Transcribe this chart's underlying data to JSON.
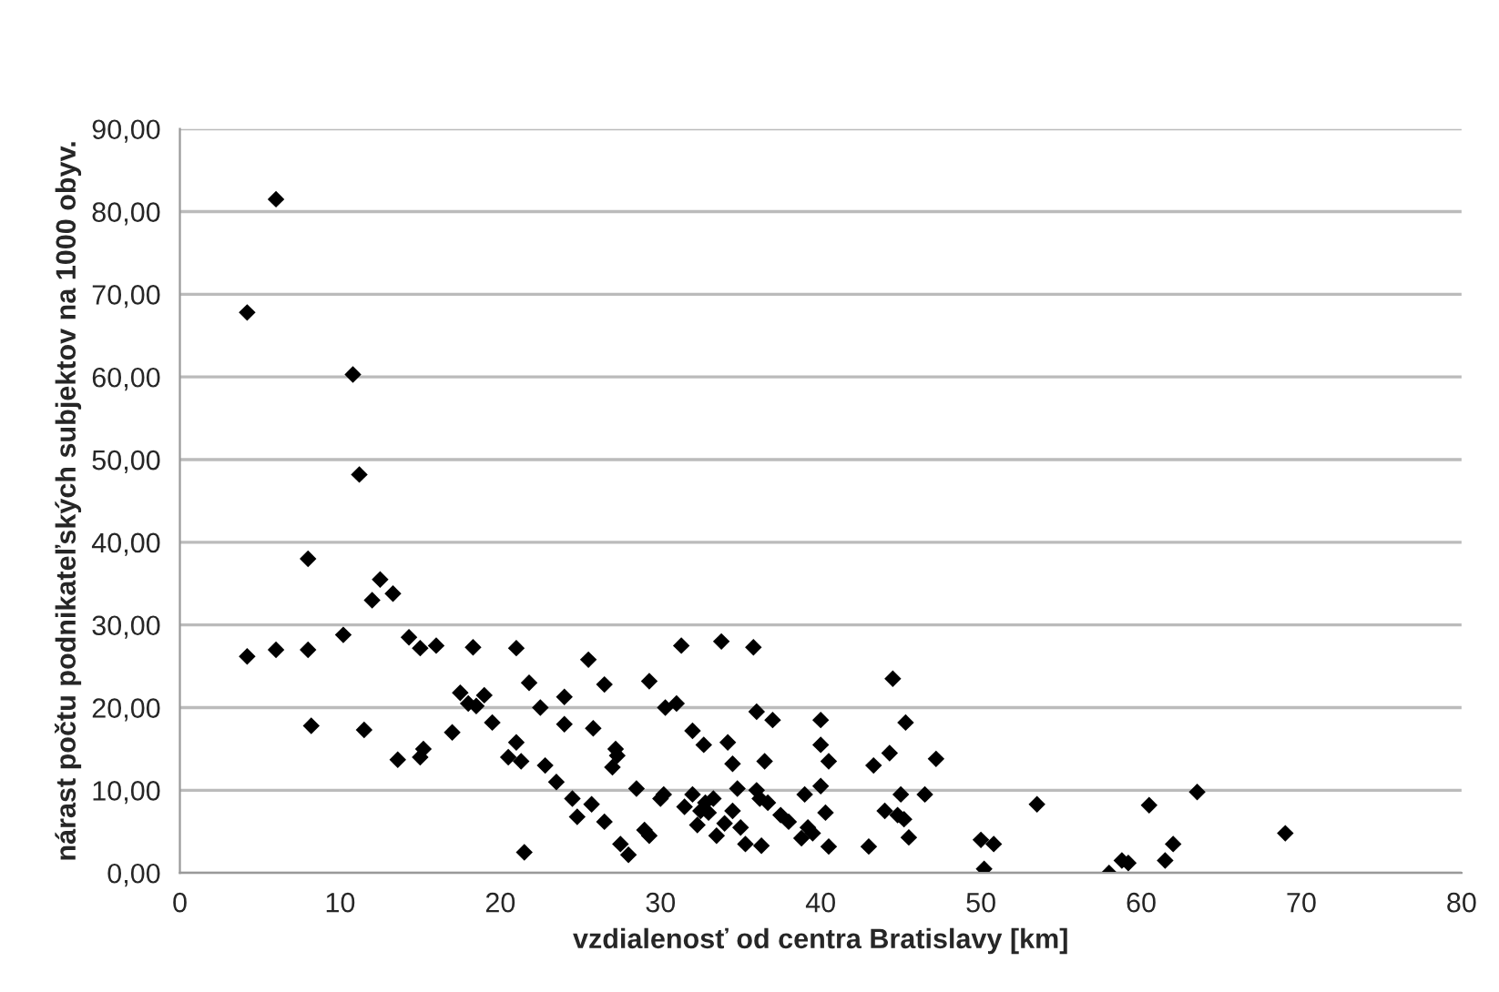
{
  "chart_data": {
    "type": "scatter",
    "xlabel": "vzdialenosť od centra Bratislavy [km]",
    "ylabel": "nárast počtu podnikateľských subjektov na 1000 obyv.",
    "x": [
      4.2,
      4.2,
      6,
      6,
      8,
      8,
      8.2,
      10.2,
      10.8,
      11.2,
      11.5,
      12,
      12.5,
      13.3,
      13.6,
      14.3,
      15,
      15,
      15.2,
      16,
      17,
      17.5,
      18,
      18.3,
      18.5,
      19,
      19.5,
      20.5,
      21,
      21,
      21.3,
      21.5,
      21.8,
      22.5,
      22.8,
      23.5,
      24,
      24,
      24.5,
      24.8,
      25.5,
      25.7,
      25.8,
      26.5,
      26.5,
      27,
      27.2,
      27.3,
      27.5,
      28,
      28.5,
      29,
      29.3,
      29.3,
      30,
      30.2,
      30.3,
      31,
      31.3,
      31.5,
      32,
      32,
      32.3,
      32.5,
      32.7,
      32.8,
      33,
      33.3,
      33.5,
      33.8,
      34,
      34.2,
      34.5,
      34.5,
      34.8,
      35,
      35.3,
      35.8,
      36,
      36,
      36.2,
      36.3,
      36.5,
      36.7,
      37,
      37.5,
      38,
      38.8,
      39,
      39.2,
      39.5,
      40,
      40,
      40,
      40.3,
      40.5,
      40.5,
      43,
      43.3,
      44,
      44.3,
      44.5,
      44.8,
      45,
      45.2,
      45.3,
      45.5,
      46.5,
      47.2,
      50,
      50.2,
      50.8,
      53.5,
      58,
      58.8,
      59.2,
      60.5,
      61.5,
      62,
      63.5,
      69
    ],
    "series": [
      {
        "color": "#000000",
        "values": [
          67.8,
          26.2,
          81.5,
          27,
          38,
          27,
          17.8,
          28.8,
          60.3,
          48.2,
          17.3,
          33,
          35.5,
          33.8,
          13.7,
          28.5,
          27.2,
          14,
          15,
          27.5,
          17,
          21.8,
          20.5,
          27.3,
          20.2,
          21.5,
          18.2,
          14,
          27.2,
          15.8,
          13.5,
          2.5,
          23,
          20,
          13,
          11,
          21.3,
          18,
          9,
          6.8,
          25.8,
          8.3,
          17.5,
          22.8,
          6.2,
          12.8,
          15,
          14.2,
          3.5,
          2.2,
          10.2,
          5.2,
          4.5,
          23.2,
          9,
          9.5,
          20,
          20.5,
          27.5,
          8,
          9.5,
          17.2,
          5.8,
          7.5,
          15.5,
          8.5,
          7.3,
          9,
          4.5,
          28,
          6,
          15.8,
          7.5,
          13.2,
          10.2,
          5.5,
          3.5,
          27.3,
          19.5,
          10,
          9,
          3.3,
          13.5,
          8.5,
          18.5,
          7,
          6.2,
          4.2,
          9.5,
          5.5,
          4.8,
          18.5,
          15.5,
          10.5,
          7.3,
          13.5,
          3.2,
          3.2,
          13,
          7.5,
          14.5,
          23.5,
          7,
          9.5,
          6.5,
          18.2,
          4.3,
          9.5,
          13.8,
          4,
          0.5,
          3.5,
          8.3,
          0,
          1.5,
          1.2,
          8.2,
          1.5,
          3.5,
          9.8,
          4.8
        ]
      }
    ],
    "xlim": [
      0,
      80
    ],
    "xticks": [
      0,
      10,
      20,
      30,
      40,
      50,
      60,
      70,
      80
    ],
    "ylim": [
      0,
      90
    ],
    "yticks": [
      {
        "value": 0,
        "label": "0,00"
      },
      {
        "value": 10,
        "label": "10,00"
      },
      {
        "value": 20,
        "label": "20,00"
      },
      {
        "value": 30,
        "label": "30,00"
      },
      {
        "value": 40,
        "label": "40,00"
      },
      {
        "value": 50,
        "label": "50,00"
      },
      {
        "value": 60,
        "label": "60,00"
      },
      {
        "value": 70,
        "label": "70,00"
      },
      {
        "value": 80,
        "label": "80,00"
      },
      {
        "value": 90,
        "label": "90,00"
      }
    ],
    "grid": "y",
    "marker": "diamond"
  }
}
